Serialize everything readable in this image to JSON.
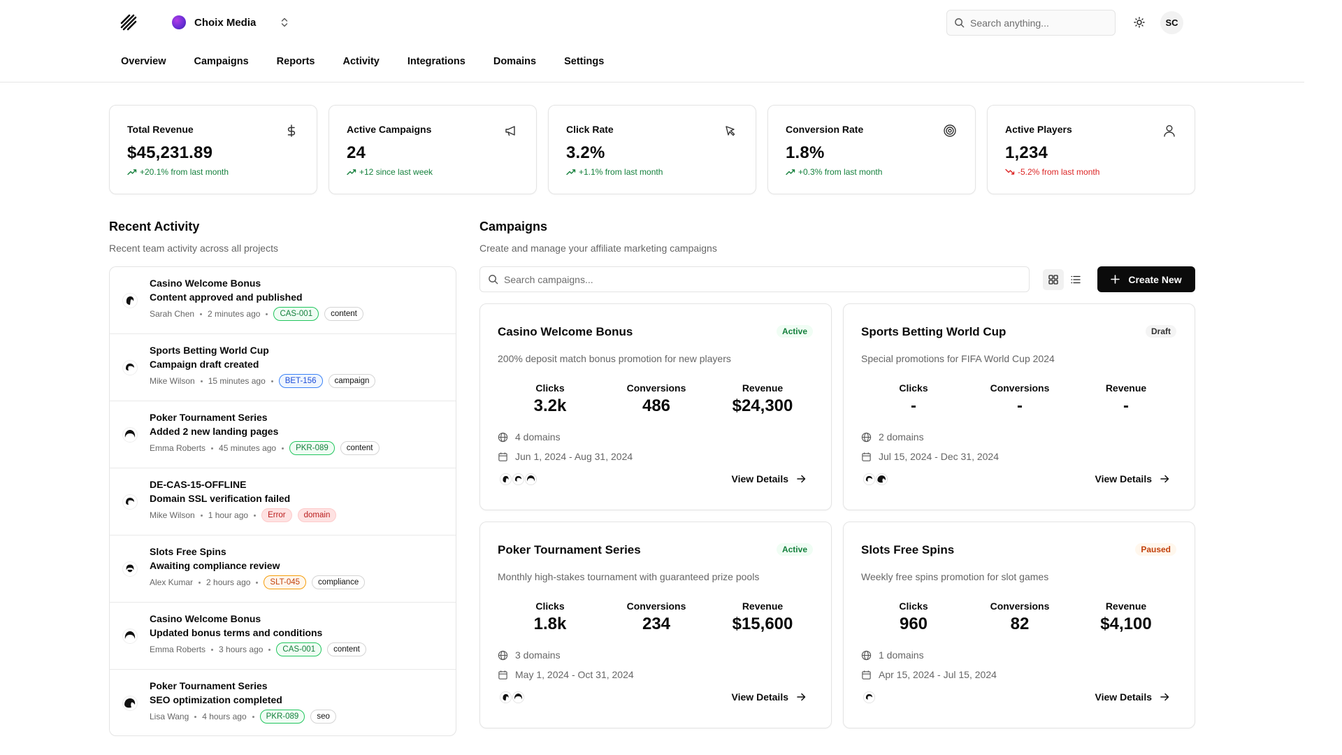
{
  "header": {
    "workspace_name": "Choix Media",
    "search_placeholder": "Search anything...",
    "user_initials": "SC"
  },
  "nav": {
    "items": [
      "Overview",
      "Campaigns",
      "Reports",
      "Activity",
      "Integrations",
      "Domains",
      "Settings"
    ]
  },
  "stats": [
    {
      "title": "Total Revenue",
      "value": "$45,231.89",
      "delta": "+20.1% from last month",
      "trend": "up",
      "icon": "dollar-icon"
    },
    {
      "title": "Active Campaigns",
      "value": "24",
      "delta": "+12 since last week",
      "trend": "up",
      "icon": "megaphone-icon"
    },
    {
      "title": "Click Rate",
      "value": "3.2%",
      "delta": "+1.1% from last month",
      "trend": "up",
      "icon": "cursor-click-icon"
    },
    {
      "title": "Conversion Rate",
      "value": "1.8%",
      "delta": "+0.3% from last month",
      "trend": "up",
      "icon": "target-icon"
    },
    {
      "title": "Active Players",
      "value": "1,234",
      "delta": "-5.2% from last month",
      "trend": "down",
      "icon": "user-icon"
    }
  ],
  "activity": {
    "title": "Recent Activity",
    "subtitle": "Recent team activity across all projects",
    "items": [
      {
        "project": "Casino Welcome Bonus",
        "action": "Content approved and published",
        "user": "Sarah Chen",
        "time": "2 minutes ago",
        "tag": "CAS-001",
        "tag_color": "green",
        "type": "content"
      },
      {
        "project": "Sports Betting World Cup",
        "action": "Campaign draft created",
        "user": "Mike Wilson",
        "time": "15 minutes ago",
        "tag": "BET-156",
        "tag_color": "blue",
        "type": "campaign"
      },
      {
        "project": "Poker Tournament Series",
        "action": "Added 2 new landing pages",
        "user": "Emma Roberts",
        "time": "45 minutes ago",
        "tag": "PKR-089",
        "tag_color": "green",
        "type": "content"
      },
      {
        "project": "DE-CAS-15-OFFLINE",
        "action": "Domain SSL verification failed",
        "user": "Mike Wilson",
        "time": "1 hour ago",
        "tag": "Error",
        "tag_color": "red",
        "type": "domain",
        "type_color": "red"
      },
      {
        "project": "Slots Free Spins",
        "action": "Awaiting compliance review",
        "user": "Alex Kumar",
        "time": "2 hours ago",
        "tag": "SLT-045",
        "tag_color": "orange",
        "type": "compliance"
      },
      {
        "project": "Casino Welcome Bonus",
        "action": "Updated bonus terms and conditions",
        "user": "Emma Roberts",
        "time": "3 hours ago",
        "tag": "CAS-001",
        "tag_color": "green",
        "type": "content"
      },
      {
        "project": "Poker Tournament Series",
        "action": "SEO optimization completed",
        "user": "Lisa Wang",
        "time": "4 hours ago",
        "tag": "PKR-089",
        "tag_color": "green",
        "type": "seo"
      }
    ]
  },
  "campaigns": {
    "title": "Campaigns",
    "subtitle": "Create and manage your affiliate marketing campaigns",
    "search_placeholder": "Search campaigns...",
    "create_label": "Create New",
    "metric_labels": {
      "clicks": "Clicks",
      "conversions": "Conversions",
      "revenue": "Revenue"
    },
    "view_details_label": "View Details",
    "items": [
      {
        "name": "Casino Welcome Bonus",
        "status": "Active",
        "status_kind": "active",
        "description": "200% deposit match bonus promotion for new players",
        "clicks": "3.2k",
        "conversions": "486",
        "revenue": "$24,300",
        "domains": "4 domains",
        "dates": "Jun 1, 2024 - Aug 31, 2024",
        "team_size": 3
      },
      {
        "name": "Sports Betting World Cup",
        "status": "Draft",
        "status_kind": "draft",
        "description": "Special promotions for FIFA World Cup 2024",
        "clicks": "-",
        "conversions": "-",
        "revenue": "-",
        "domains": "2 domains",
        "dates": "Jul 15, 2024 - Dec 31, 2024",
        "team_size": 2
      },
      {
        "name": "Poker Tournament Series",
        "status": "Active",
        "status_kind": "active",
        "description": "Monthly high-stakes tournament with guaranteed prize pools",
        "clicks": "1.8k",
        "conversions": "234",
        "revenue": "$15,600",
        "domains": "3 domains",
        "dates": "May 1, 2024 - Oct 31, 2024",
        "team_size": 2
      },
      {
        "name": "Slots Free Spins",
        "status": "Paused",
        "status_kind": "paused",
        "description": "Weekly free spins promotion for slot games",
        "clicks": "960",
        "conversions": "82",
        "revenue": "$4,100",
        "domains": "1 domains",
        "dates": "Apr 15, 2024 - Jul 15, 2024",
        "team_size": 1
      }
    ]
  }
}
